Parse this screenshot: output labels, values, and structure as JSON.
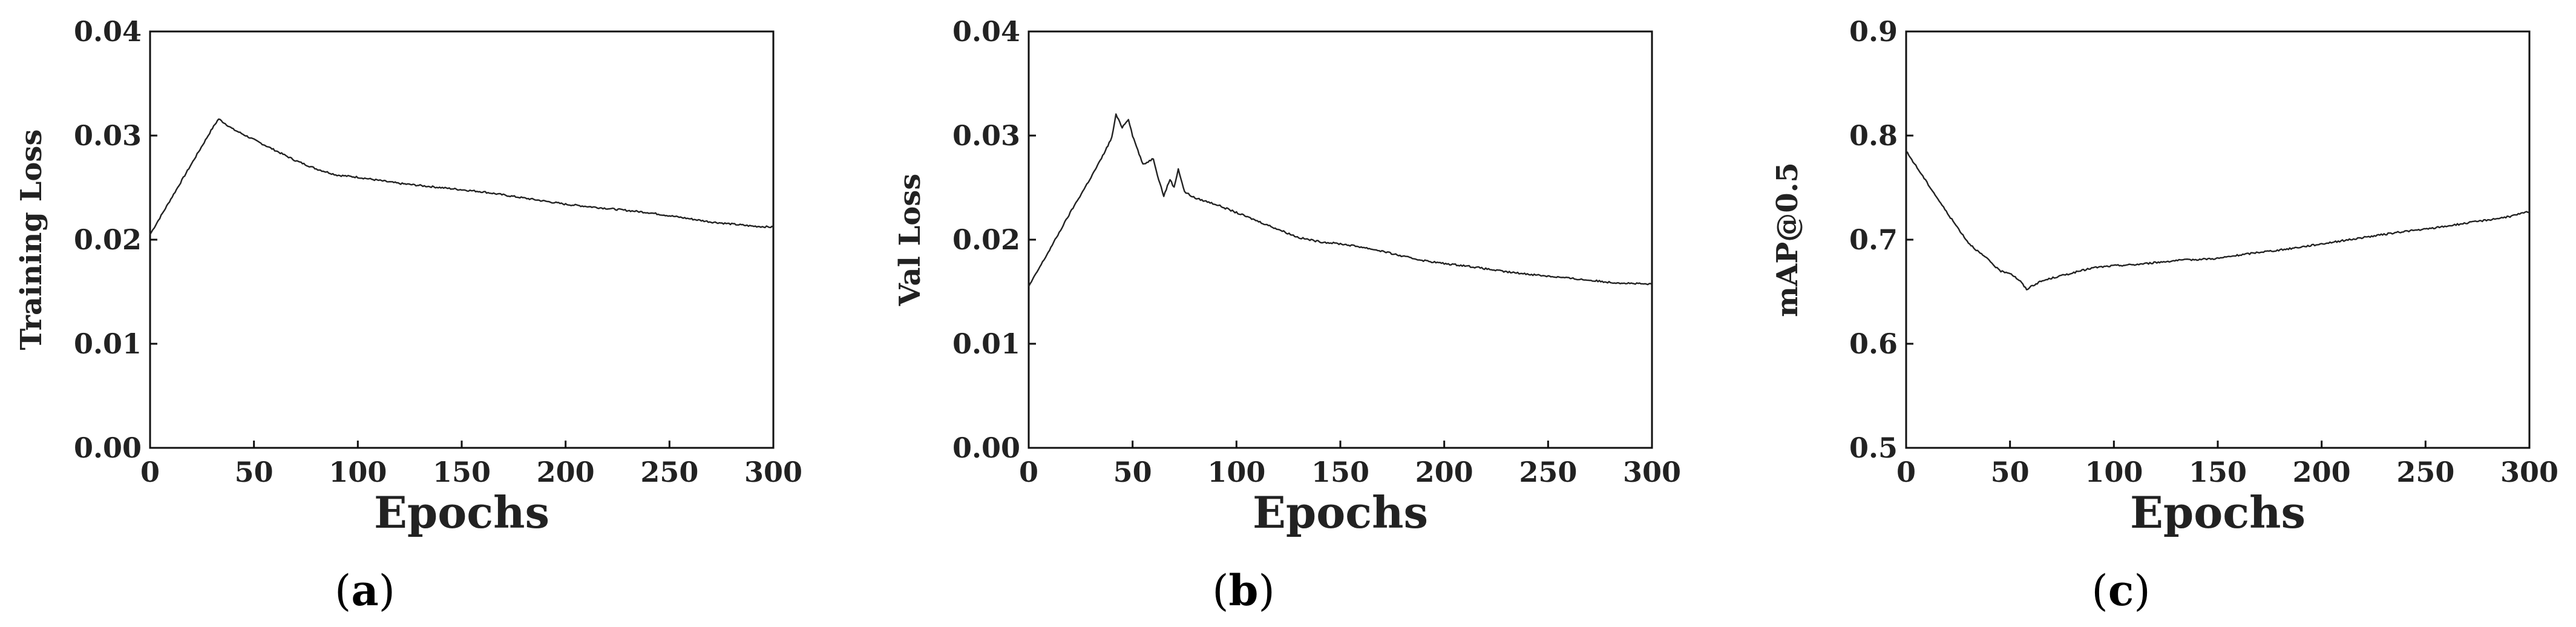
{
  "chart_data": [
    {
      "type": "line",
      "caption_letter": "a",
      "xlabel": "Epochs",
      "ylabel": "Training Loss",
      "xlim": [
        0,
        300
      ],
      "ylim": [
        0,
        0.04
      ],
      "xticks": [
        "0",
        "50",
        "100",
        "150",
        "200",
        "250",
        "300"
      ],
      "yticks": [
        "0.00",
        "0.01",
        "0.02",
        "0.03",
        "0.04"
      ],
      "grid": false,
      "series": [
        {
          "x": [
            0,
            10,
            20,
            30,
            33,
            40,
            50,
            60,
            70,
            80,
            90,
            100,
            110,
            120,
            130,
            140,
            150,
            160,
            170,
            180,
            190,
            200,
            210,
            220,
            230,
            240,
            250,
            260,
            270,
            280,
            290,
            300
          ],
          "y": [
            0.0205,
            0.0239,
            0.0273,
            0.0307,
            0.0316,
            0.0306,
            0.0296,
            0.0286,
            0.0276,
            0.0268,
            0.0262,
            0.026,
            0.0257,
            0.0254,
            0.0252,
            0.025,
            0.0248,
            0.0246,
            0.0243,
            0.024,
            0.0237,
            0.0234,
            0.0232,
            0.023,
            0.0228,
            0.0226,
            0.0223,
            0.022,
            0.0217,
            0.0215,
            0.0213,
            0.0212
          ]
        }
      ]
    },
    {
      "type": "line",
      "caption_letter": "b",
      "xlabel": "Epochs",
      "ylabel": "Val Loss",
      "xlim": [
        0,
        300
      ],
      "ylim": [
        0,
        0.04
      ],
      "xticks": [
        "0",
        "50",
        "100",
        "150",
        "200",
        "250",
        "300"
      ],
      "yticks": [
        "0.00",
        "0.01",
        "0.02",
        "0.03",
        "0.04"
      ],
      "grid": false,
      "series": [
        {
          "x": [
            0,
            10,
            20,
            30,
            35,
            40,
            42,
            45,
            48,
            50,
            55,
            60,
            62,
            65,
            68,
            70,
            72,
            75,
            80,
            90,
            100,
            110,
            120,
            130,
            140,
            150,
            160,
            170,
            180,
            190,
            200,
            210,
            220,
            230,
            240,
            250,
            260,
            270,
            280,
            290,
            300
          ],
          "y": [
            0.0155,
            0.019,
            0.0226,
            0.026,
            0.0278,
            0.0298,
            0.032,
            0.0308,
            0.0316,
            0.03,
            0.0272,
            0.0278,
            0.0262,
            0.0242,
            0.0258,
            0.025,
            0.0268,
            0.0246,
            0.024,
            0.0234,
            0.0226,
            0.0218,
            0.021,
            0.0202,
            0.0198,
            0.0196,
            0.0193,
            0.0189,
            0.0184,
            0.018,
            0.0177,
            0.0175,
            0.0172,
            0.0169,
            0.0167,
            0.0165,
            0.0163,
            0.0161,
            0.0159,
            0.0158,
            0.0157
          ]
        }
      ]
    },
    {
      "type": "line",
      "caption_letter": "c",
      "xlabel": "Epochs",
      "ylabel": "mAP@0.5",
      "xlim": [
        0,
        300
      ],
      "ylim": [
        0.5,
        0.9
      ],
      "xticks": [
        "0",
        "50",
        "100",
        "150",
        "200",
        "250",
        "300"
      ],
      "yticks": [
        "0.5",
        "0.6",
        "0.7",
        "0.8",
        "0.9"
      ],
      "grid": false,
      "series": [
        {
          "x": [
            0,
            10,
            20,
            30,
            35,
            40,
            45,
            50,
            55,
            58,
            60,
            65,
            70,
            80,
            90,
            100,
            110,
            120,
            130,
            140,
            150,
            160,
            170,
            180,
            190,
            200,
            210,
            220,
            230,
            240,
            250,
            260,
            270,
            280,
            290,
            300
          ],
          "y": [
            0.785,
            0.755,
            0.725,
            0.697,
            0.688,
            0.68,
            0.67,
            0.668,
            0.66,
            0.652,
            0.655,
            0.66,
            0.663,
            0.668,
            0.673,
            0.675,
            0.676,
            0.678,
            0.68,
            0.681,
            0.682,
            0.685,
            0.688,
            0.69,
            0.693,
            0.696,
            0.699,
            0.702,
            0.705,
            0.708,
            0.71,
            0.713,
            0.716,
            0.719,
            0.722,
            0.727
          ]
        }
      ]
    }
  ]
}
